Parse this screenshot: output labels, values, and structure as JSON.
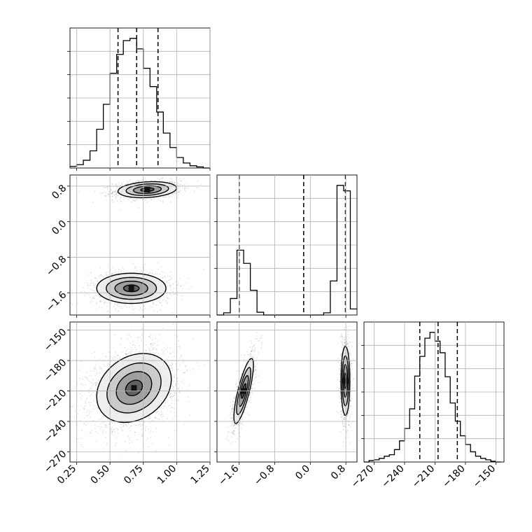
{
  "chart_data": {
    "type": "corner",
    "grid": true,
    "params": [
      {
        "key": "p0",
        "range": [
          0.2,
          1.25
        ],
        "ticks": [
          0.25,
          0.5,
          0.75,
          1.0,
          1.25
        ],
        "tick_labels": [
          "0.25",
          "0.50",
          "0.75",
          "1.00",
          "1.25"
        ]
      },
      {
        "key": "p1",
        "range": [
          -2.1,
          1.05
        ],
        "ticks": [
          -1.6,
          -0.8,
          0.0,
          0.8
        ],
        "tick_labels": [
          "−1.6",
          "−0.8",
          "0.0",
          "0.8"
        ]
      },
      {
        "key": "p2",
        "range": [
          -280,
          -142
        ],
        "ticks": [
          -270,
          -240,
          -210,
          -180,
          -150
        ],
        "tick_labels": [
          "−270",
          "−240",
          "−210",
          "−180",
          "−150"
        ]
      }
    ],
    "histograms": [
      {
        "param": 0,
        "bins": [
          0.2,
          0.25,
          0.3,
          0.35,
          0.4,
          0.45,
          0.5,
          0.55,
          0.6,
          0.65,
          0.7,
          0.75,
          0.8,
          0.85,
          0.9,
          0.95,
          1.0,
          1.05,
          1.1,
          1.15,
          1.2,
          1.25
        ],
        "counts": [
          3,
          6,
          14,
          31,
          70,
          115,
          171,
          205,
          230,
          234,
          215,
          180,
          147,
          101,
          63,
          37,
          19,
          9,
          4,
          2,
          0
        ],
        "quantiles": [
          0.56,
          0.7,
          0.86
        ]
      },
      {
        "param": 1,
        "bins": [
          -2.1,
          -1.95,
          -1.8,
          -1.65,
          -1.5,
          -1.35,
          -1.2,
          -1.05,
          -0.9,
          -0.75,
          -0.6,
          -0.45,
          -0.3,
          -0.15,
          0.0,
          0.15,
          0.3,
          0.45,
          0.6,
          0.75,
          0.9,
          1.05
        ],
        "counts": [
          0,
          4,
          30,
          118,
          94,
          45,
          5,
          0,
          0,
          0,
          0,
          0,
          0,
          0,
          0,
          0,
          4,
          62,
          236,
          226,
          11
        ],
        "quantiles": [
          -1.6,
          -0.15,
          0.79
        ]
      },
      {
        "param": 2,
        "bins": [
          -280,
          -275,
          -270,
          -265,
          -260,
          -255,
          -250,
          -245,
          -240,
          -235,
          -230,
          -225,
          -220,
          -215,
          -210,
          -205,
          -200,
          -195,
          -190,
          -185,
          -180,
          -175,
          -170,
          -165,
          -160,
          -155,
          -150,
          -145
        ],
        "counts": [
          0,
          2,
          3,
          5,
          8,
          10,
          17,
          29,
          46,
          73,
          118,
          145,
          170,
          178,
          166,
          150,
          117,
          81,
          56,
          36,
          24,
          14,
          8,
          5,
          3,
          1,
          0
        ],
        "quantiles": [
          -225,
          -207,
          -188
        ]
      }
    ],
    "joints": [
      {
        "x": 0,
        "y": 1,
        "modes": [
          {
            "cx": 0.78,
            "cy": 0.72,
            "sx": 0.11,
            "sy": 0.09,
            "rho": 0.2,
            "weight": 0.5
          },
          {
            "cx": 0.66,
            "cy": -1.5,
            "sx": 0.13,
            "sy": 0.17,
            "rho": 0.0,
            "weight": 0.5
          }
        ]
      },
      {
        "x": 0,
        "y": 2,
        "modes": [
          {
            "cx": 0.68,
            "cy": -207,
            "sx": 0.14,
            "sy": 17,
            "rho": 0.25,
            "weight": 1.0
          }
        ]
      },
      {
        "x": 1,
        "y": 2,
        "modes": [
          {
            "cx": -1.5,
            "cy": -210,
            "sx": 0.11,
            "sy": 16,
            "rho": 0.8,
            "weight": 0.5
          },
          {
            "cx": 0.79,
            "cy": -200,
            "sx": 0.05,
            "sy": 17,
            "rho": 0.0,
            "weight": 0.5
          }
        ]
      }
    ]
  }
}
